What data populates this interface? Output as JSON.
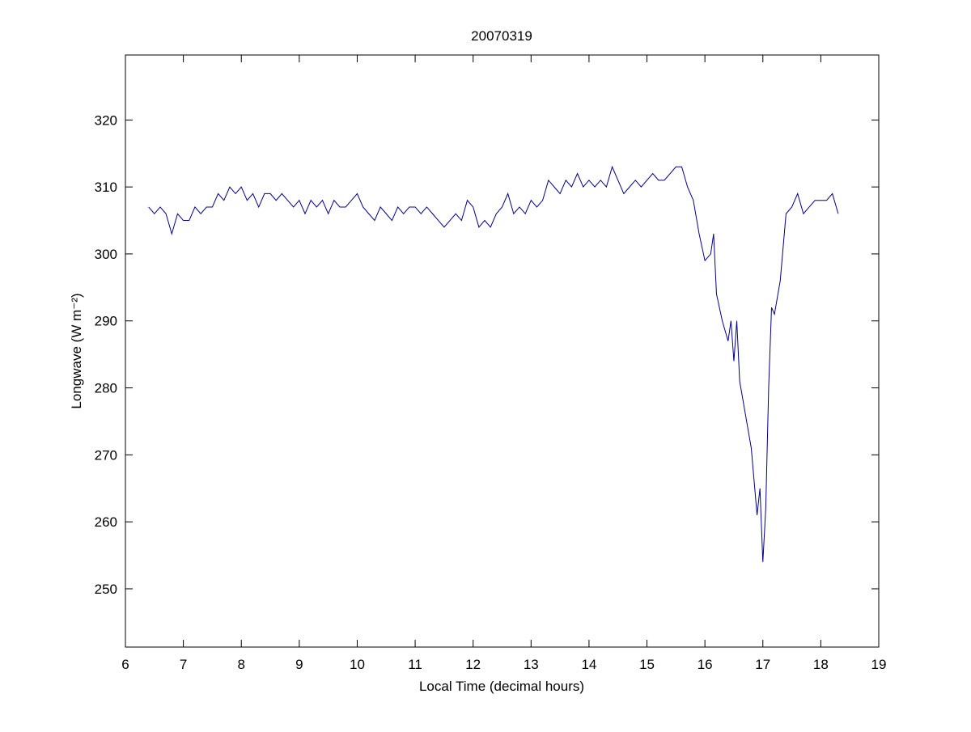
{
  "chart_data": {
    "type": "line",
    "title": "20070319",
    "xlabel": "Local Time (decimal hours)",
    "ylabel": "Longwave (W m⁻²)",
    "x": [
      6.4,
      6.5,
      6.6,
      6.7,
      6.8,
      6.9,
      7.0,
      7.1,
      7.2,
      7.3,
      7.4,
      7.5,
      7.6,
      7.7,
      7.8,
      7.9,
      8.0,
      8.1,
      8.2,
      8.3,
      8.4,
      8.5,
      8.6,
      8.7,
      8.8,
      8.9,
      9.0,
      9.1,
      9.2,
      9.3,
      9.4,
      9.5,
      9.6,
      9.7,
      9.8,
      9.9,
      10.0,
      10.1,
      10.2,
      10.3,
      10.4,
      10.5,
      10.6,
      10.7,
      10.8,
      10.9,
      11.0,
      11.1,
      11.2,
      11.3,
      11.4,
      11.5,
      11.6,
      11.7,
      11.8,
      11.9,
      12.0,
      12.1,
      12.2,
      12.3,
      12.4,
      12.5,
      12.6,
      12.7,
      12.8,
      12.9,
      13.0,
      13.1,
      13.2,
      13.3,
      13.4,
      13.5,
      13.6,
      13.7,
      13.8,
      13.9,
      14.0,
      14.1,
      14.2,
      14.3,
      14.4,
      14.5,
      14.6,
      14.7,
      14.8,
      14.9,
      15.0,
      15.1,
      15.2,
      15.3,
      15.4,
      15.5,
      15.6,
      15.7,
      15.8,
      15.9,
      16.0,
      16.1,
      16.15,
      16.2,
      16.3,
      16.4,
      16.45,
      16.5,
      16.55,
      16.6,
      16.7,
      16.8,
      16.9,
      16.95,
      17.0,
      17.05,
      17.1,
      17.15,
      17.2,
      17.3,
      17.4,
      17.5,
      17.6,
      17.7,
      17.8,
      17.9,
      18.0,
      18.1,
      18.2,
      18.3
    ],
    "series": [
      {
        "name": "Longwave",
        "color": "#00008b",
        "values": [
          307,
          306,
          307,
          306,
          303,
          306,
          305,
          305,
          307,
          306,
          307,
          307,
          309,
          308,
          310,
          309,
          310,
          308,
          309,
          307,
          309,
          309,
          308,
          309,
          308,
          307,
          308,
          306,
          308,
          307,
          308,
          306,
          308,
          307,
          307,
          308,
          309,
          307,
          306,
          305,
          307,
          306,
          305,
          307,
          306,
          307,
          307,
          306,
          307,
          306,
          305,
          304,
          305,
          306,
          305,
          308,
          307,
          304,
          305,
          304,
          306,
          307,
          309,
          306,
          307,
          306,
          308,
          307,
          308,
          311,
          310,
          309,
          311,
          310,
          312,
          310,
          311,
          310,
          311,
          310,
          313,
          311,
          309,
          310,
          311,
          310,
          311,
          312,
          311,
          311,
          312,
          313,
          313,
          310,
          308,
          303,
          299,
          300,
          303,
          294,
          290,
          287,
          290,
          284,
          290,
          281,
          276,
          271,
          261,
          265,
          254,
          262,
          280,
          292,
          291,
          296,
          306,
          307,
          309,
          306,
          307,
          308,
          308,
          308,
          309,
          306
        ]
      }
    ],
    "xlim": [
      6,
      19
    ],
    "xticks": [
      6,
      7,
      8,
      9,
      10,
      11,
      12,
      13,
      14,
      15,
      16,
      17,
      18,
      19
    ],
    "ylim": [
      241.3,
      329.7
    ],
    "yticks": [
      250,
      260,
      270,
      280,
      290,
      300,
      310,
      320
    ],
    "grid": false
  }
}
